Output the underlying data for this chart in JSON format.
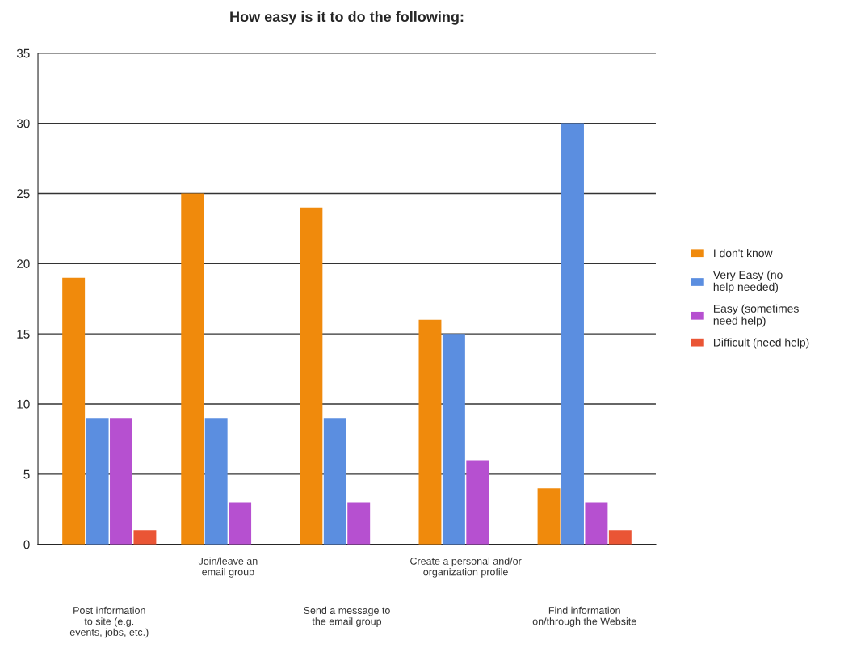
{
  "chart_data": {
    "type": "bar",
    "title": "How easy is it to do the following:",
    "categories": [
      "Post information\nto site (e.g.\nevents, jobs, etc.)",
      "Join/leave an\nemail group",
      "Send a message to\nthe email group",
      "Create a personal and/or\norganization profile",
      "Find information\non/through the Website"
    ],
    "series": [
      {
        "name": "I don't know",
        "color": "#f08a0c",
        "values": [
          19,
          25,
          24,
          16,
          4
        ]
      },
      {
        "name": "Very Easy (no\nhelp needed)",
        "color": "#5b8ee0",
        "values": [
          9,
          9,
          9,
          15,
          30
        ]
      },
      {
        "name": "Easy (sometimes\nneed help)",
        "color": "#b650d0",
        "values": [
          9,
          3,
          3,
          6,
          3
        ]
      },
      {
        "name": "Difficult (need help)",
        "color": "#ea5535",
        "values": [
          1,
          null,
          null,
          null,
          1
        ]
      }
    ],
    "ylim": [
      0,
      35
    ],
    "yticks": [
      0,
      5,
      10,
      15,
      20,
      25,
      30,
      35
    ],
    "grid": "y",
    "legend": "right"
  }
}
